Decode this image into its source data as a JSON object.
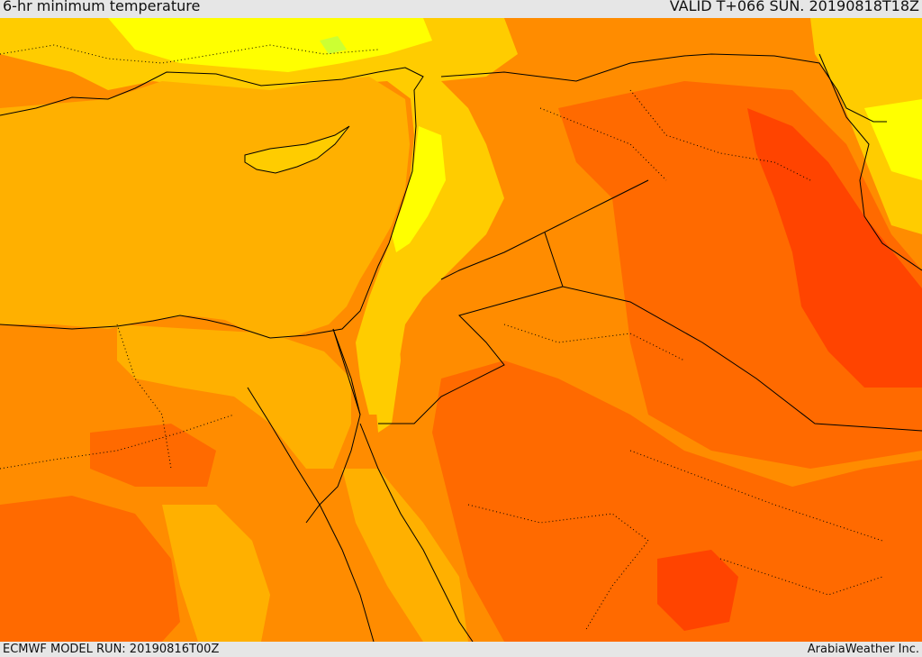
{
  "header": {
    "title": "6-hr minimum temperature",
    "valid": "VALID T+066 SUN. 20190818T18Z"
  },
  "footer": {
    "model_run": "ECMWF MODEL RUN: 20190816T00Z",
    "credit": "ArabiaWeather Inc."
  },
  "colors": {
    "sea": "#ffb000",
    "land_warm": "#ff8c00",
    "hot": "#ff6a00",
    "very_hot": "#ff4400",
    "mild": "#ffcc00",
    "cool": "#ffff00",
    "cool_spot": "#ccff33",
    "border": "#000000"
  }
}
